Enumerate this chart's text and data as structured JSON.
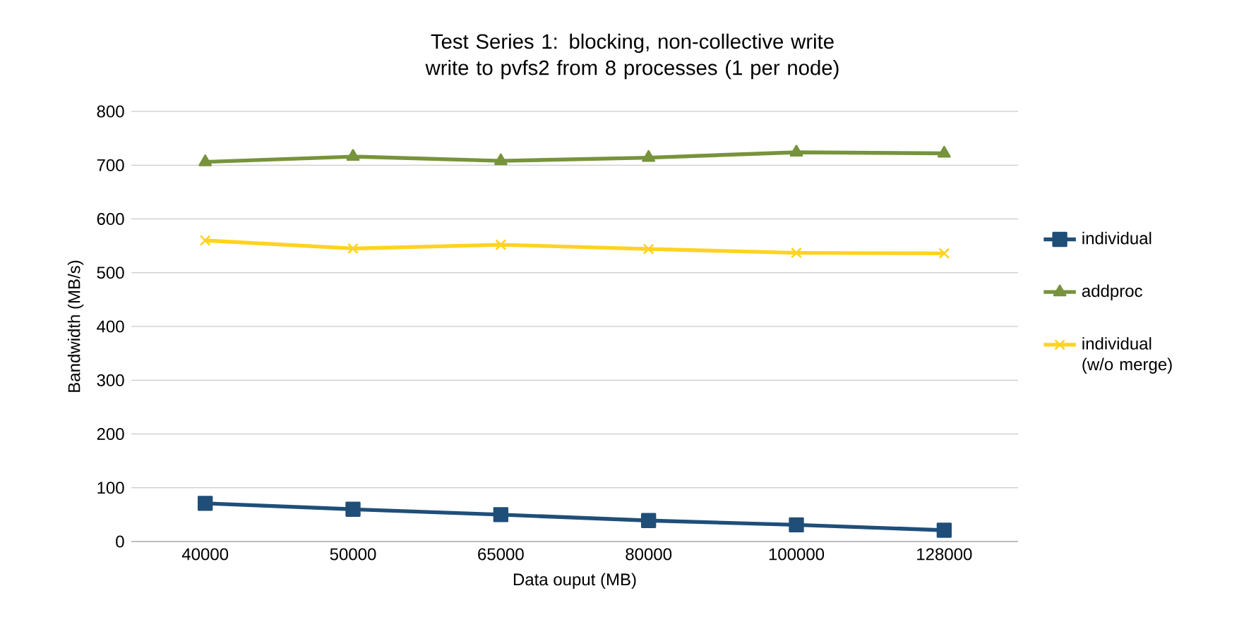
{
  "chart_data": {
    "type": "line",
    "title": "Test Series 1: blocking, non-collective write\nwrite to pvfs2 from 8 processes (1 per node)",
    "xlabel": "Data ouput (MB)",
    "ylabel": "Bandwidth (MB/s)",
    "categories": [
      "40000",
      "50000",
      "65000",
      "80000",
      "100000",
      "128000"
    ],
    "series": [
      {
        "name": "individual",
        "color": "#1f4e79",
        "marker": "square",
        "values": [
          71,
          60,
          50,
          39,
          31,
          21
        ]
      },
      {
        "name": "addproc",
        "color": "#77933c",
        "marker": "triangle",
        "values": [
          706,
          716,
          708,
          714,
          724,
          722
        ]
      },
      {
        "name": "individual (w/o merge)",
        "color": "#ffd320",
        "marker": "cross",
        "values": [
          560,
          545,
          552,
          544,
          537,
          536
        ]
      }
    ],
    "ylim": [
      0,
      800
    ],
    "yticks": [
      0,
      100,
      200,
      300,
      400,
      500,
      600,
      700,
      800
    ],
    "grid": "y",
    "legend": "right"
  }
}
